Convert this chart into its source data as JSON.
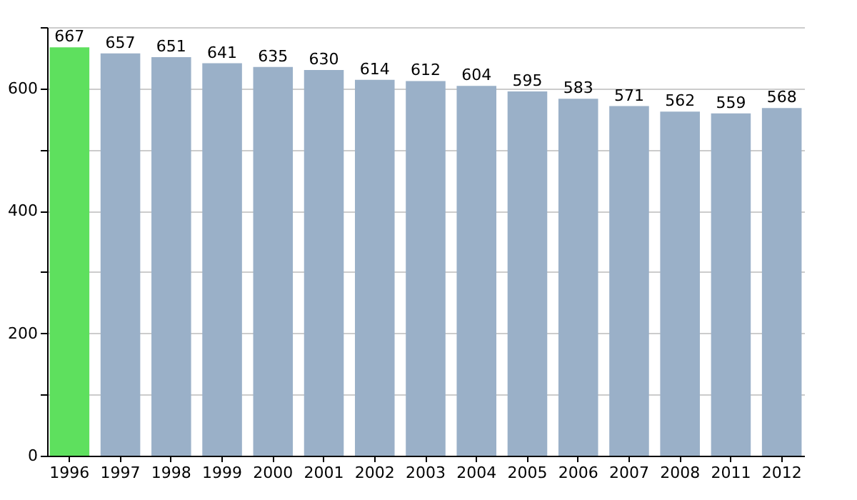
{
  "chart_data": {
    "type": "bar",
    "categories": [
      "1996",
      "1997",
      "1998",
      "1999",
      "2000",
      "2001",
      "2002",
      "2003",
      "2004",
      "2005",
      "2006",
      "2007",
      "2008",
      "2011",
      "2012"
    ],
    "values": [
      667,
      657,
      651,
      641,
      635,
      630,
      614,
      612,
      604,
      595,
      583,
      571,
      562,
      559,
      568
    ],
    "colors": [
      "#5ee05e",
      "#9ab0c8",
      "#9ab0c8",
      "#9ab0c8",
      "#9ab0c8",
      "#9ab0c8",
      "#9ab0c8",
      "#9ab0c8",
      "#9ab0c8",
      "#9ab0c8",
      "#9ab0c8",
      "#9ab0c8",
      "#9ab0c8",
      "#9ab0c8",
      "#9ab0c8"
    ],
    "ylim": [
      0,
      700
    ],
    "yticks": [
      0,
      {
        "value": 100,
        "label": null
      },
      200,
      {
        "value": 300,
        "label": null
      },
      400,
      {
        "value": 500,
        "label": null
      },
      600,
      {
        "value": 700,
        "label": null
      }
    ],
    "grid": "y",
    "data_labels": true
  }
}
